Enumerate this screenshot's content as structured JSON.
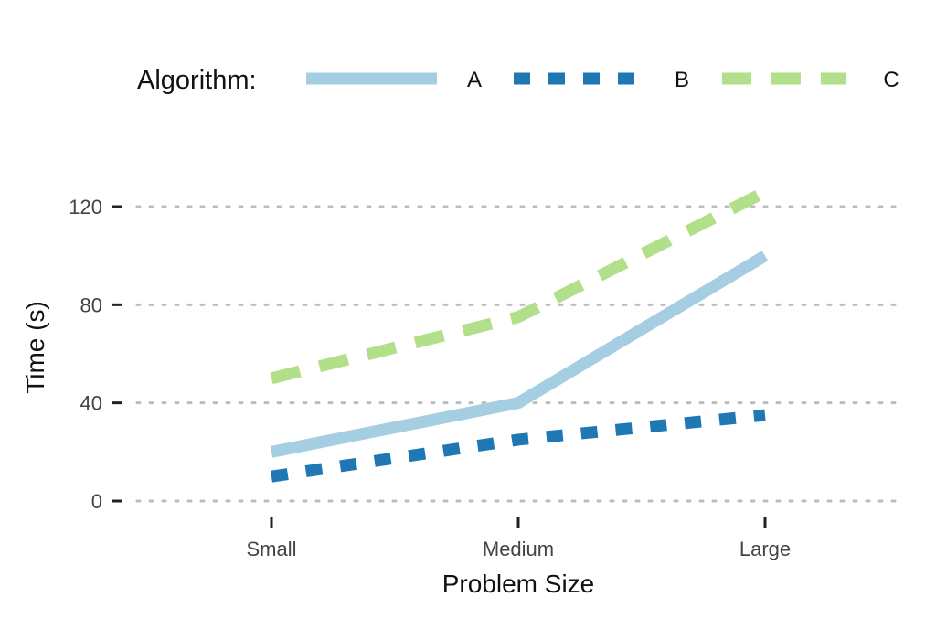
{
  "chart_data": {
    "type": "line",
    "title": "",
    "xlabel": "Problem Size",
    "ylabel": "Time (s)",
    "categories": [
      "Small",
      "Medium",
      "Large"
    ],
    "yticks": [
      0,
      40,
      80,
      120
    ],
    "ylim": [
      0,
      130
    ],
    "grid": "horizontal-dotted",
    "legend": {
      "title": "Algorithm:",
      "position": "top"
    },
    "series": [
      {
        "name": "A",
        "values": [
          20,
          40,
          100
        ],
        "color": "#a6cee3",
        "line_style": "solid"
      },
      {
        "name": "B",
        "values": [
          10,
          25,
          35
        ],
        "color": "#1f78b4",
        "line_style": "dashed-short"
      },
      {
        "name": "C",
        "values": [
          50,
          75,
          126
        ],
        "color": "#b2df8a",
        "line_style": "dashed-long"
      }
    ]
  }
}
